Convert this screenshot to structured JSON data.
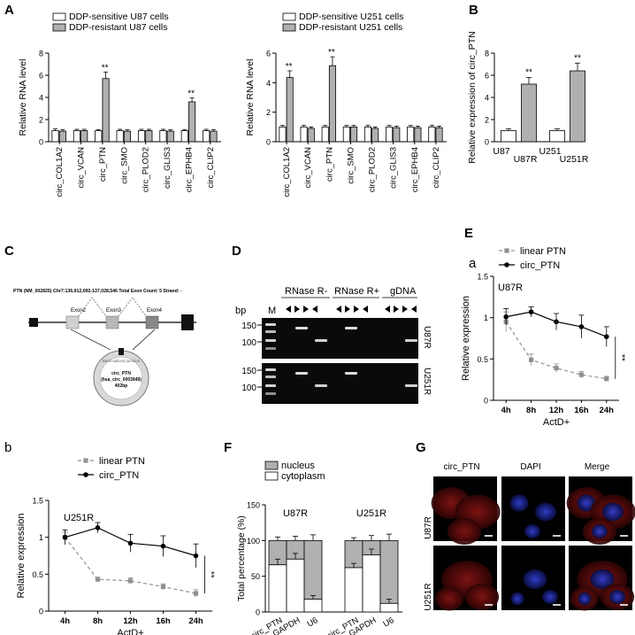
{
  "panels": {
    "A": "A",
    "B": "B",
    "C": "C",
    "D": "D",
    "E": "E",
    "E_sub": "a",
    "b": "b",
    "F": "F",
    "G": "G"
  },
  "chart_data": [
    {
      "id": "A_u87",
      "type": "bar",
      "ylabel": "Relative RNA level",
      "ylim": [
        0,
        8
      ],
      "yticks": [
        0,
        2,
        4,
        6,
        8
      ],
      "categories": [
        "circ_COL1A2",
        "circ_VCAN",
        "circ_PTN",
        "circ_SMO",
        "circ_PLOD2",
        "circ_GLIS3",
        "circ_EPHB4",
        "circ_CLIP2"
      ],
      "series": [
        {
          "name": "DDP-sensitive U87 cells",
          "color": "#ffffff",
          "values": [
            1.0,
            1.0,
            1.0,
            1.0,
            1.0,
            1.0,
            1.0,
            1.0
          ],
          "errors": [
            0.15,
            0.12,
            0.1,
            0.12,
            0.12,
            0.12,
            0.1,
            0.12
          ]
        },
        {
          "name": "DDP-resistant U87 cells",
          "color": "#b0b0b0",
          "values": [
            0.95,
            1.0,
            5.7,
            0.95,
            1.0,
            0.95,
            3.6,
            0.95
          ],
          "errors": [
            0.12,
            0.12,
            0.6,
            0.12,
            0.12,
            0.12,
            0.35,
            0.12
          ]
        }
      ],
      "significance": [
        {
          "category": "circ_PTN",
          "label": "**"
        },
        {
          "category": "circ_EPHB4",
          "label": "**"
        }
      ]
    },
    {
      "id": "A_u251",
      "type": "bar",
      "ylabel": "Relative RNA level",
      "ylim": [
        0,
        6
      ],
      "yticks": [
        0,
        2,
        4,
        6
      ],
      "categories": [
        "circ_COL1A2",
        "circ_VCAN",
        "circ_PTN",
        "circ_SMO",
        "circ_PLOD2",
        "circ_GLIS3",
        "circ_EPHB4",
        "circ_CLIP2"
      ],
      "series": [
        {
          "name": "DDP-sensitive U251 cells",
          "color": "#ffffff",
          "values": [
            1.0,
            1.0,
            1.0,
            1.0,
            1.0,
            1.0,
            1.0,
            1.0
          ],
          "errors": [
            0.1,
            0.1,
            0.1,
            0.1,
            0.1,
            0.1,
            0.1,
            0.1
          ]
        },
        {
          "name": "DDP-resistant U251 cells",
          "color": "#b0b0b0",
          "values": [
            4.35,
            0.9,
            5.15,
            1.0,
            0.9,
            0.95,
            0.95,
            0.95
          ],
          "errors": [
            0.45,
            0.1,
            0.6,
            0.1,
            0.1,
            0.1,
            0.1,
            0.1
          ]
        }
      ],
      "significance": [
        {
          "category": "circ_COL1A2",
          "label": "**"
        },
        {
          "category": "circ_PTN",
          "label": "**"
        }
      ]
    },
    {
      "id": "B",
      "type": "bar",
      "ylabel": "Relative expression of circ_PTN",
      "ylim": [
        0,
        8
      ],
      "yticks": [
        0,
        2,
        4,
        6,
        8
      ],
      "categories": [
        "U87",
        "U87R",
        "U251",
        "U251R"
      ],
      "values": [
        1.0,
        5.2,
        1.0,
        6.4
      ],
      "errors": [
        0.15,
        0.6,
        0.15,
        0.7
      ],
      "colors": [
        "#ffffff",
        "#b0b0b0",
        "#ffffff",
        "#b0b0b0"
      ],
      "significance": [
        {
          "category": "U87R",
          "label": "**"
        },
        {
          "category": "U251R",
          "label": "**"
        }
      ]
    },
    {
      "id": "Ea",
      "type": "line",
      "title": "U87R",
      "ylabel": "Relative expression",
      "xlabel": "ActD+",
      "ylim": [
        0,
        1.5
      ],
      "yticks": [
        0.0,
        0.5,
        1.0,
        1.5
      ],
      "categories": [
        "4h",
        "8h",
        "12h",
        "16h",
        "24h"
      ],
      "series": [
        {
          "name": "linear PTN",
          "style": "dashed",
          "color": "#909090",
          "marker": "square",
          "values": [
            0.95,
            0.49,
            0.39,
            0.31,
            0.26
          ],
          "errors": [
            0.12,
            0.07,
            0.05,
            0.04,
            0.03
          ]
        },
        {
          "name": "circ_PTN",
          "style": "solid",
          "color": "#000000",
          "marker": "circle",
          "values": [
            1.01,
            1.07,
            0.95,
            0.89,
            0.77
          ],
          "errors": [
            0.1,
            0.06,
            0.1,
            0.14,
            0.12
          ]
        }
      ],
      "significance": "**"
    },
    {
      "id": "b",
      "type": "line",
      "title": "U251R",
      "ylabel": "Relative expression",
      "xlabel": "ActD+",
      "ylim": [
        0,
        1.5
      ],
      "yticks": [
        0.0,
        0.5,
        1.0,
        1.5
      ],
      "categories": [
        "4h",
        "8h",
        "12h",
        "16h",
        "24h"
      ],
      "series": [
        {
          "name": "linear PTN",
          "style": "dashed",
          "color": "#909090",
          "marker": "square",
          "values": [
            1.0,
            0.43,
            0.41,
            0.33,
            0.24
          ],
          "errors": [
            0.06,
            0.03,
            0.04,
            0.04,
            0.05
          ]
        },
        {
          "name": "circ_PTN",
          "style": "solid",
          "color": "#000000",
          "marker": "circle",
          "values": [
            1.0,
            1.13,
            0.92,
            0.88,
            0.75
          ],
          "errors": [
            0.1,
            0.07,
            0.12,
            0.14,
            0.16
          ]
        }
      ],
      "significance": "**"
    },
    {
      "id": "F",
      "type": "bar",
      "stacked": true,
      "ylabel": "Total percentage (%)",
      "ylim": [
        0,
        150
      ],
      "yticks": [
        0,
        50,
        100,
        150
      ],
      "groups": [
        "U87R",
        "U251R"
      ],
      "categories": [
        "circ_PTN",
        "GAPDH",
        "U6"
      ],
      "series": [
        {
          "name": "nucleus",
          "color": "#b0b0b0"
        },
        {
          "name": "cytoplasm",
          "color": "#ffffff"
        }
      ],
      "cytoplasm": [
        [
          66,
          74,
          18
        ],
        [
          62,
          80,
          12
        ]
      ],
      "cyto_errors": [
        [
          8,
          8,
          5
        ],
        [
          6,
          8,
          6
        ]
      ],
      "total_errors": [
        [
          5,
          6,
          8
        ],
        [
          4,
          7,
          9
        ]
      ]
    }
  ],
  "panelC": {
    "header": "PTN (NM_002825) Chr7:136,912,092-137,028,546 Total Exon Count: 5 Strand: -",
    "exons": [
      "Exon2",
      "Exon3",
      "Exon4"
    ],
    "junction": "Back-spliced junction",
    "circle_lines": [
      "circ_PTN",
      "(hsa_circ_0003949)",
      "402bp"
    ]
  },
  "panelD": {
    "groups": [
      "RNase R-",
      "RNase R+",
      "gDNA"
    ],
    "bp_label": "bp",
    "ladder_label": "M",
    "ladder_ticks": [
      "150",
      "100"
    ],
    "rows": [
      "U87R",
      "U251R"
    ]
  },
  "panelG": {
    "columns": [
      "circ_PTN",
      "DAPI",
      "Merge"
    ],
    "rows": [
      "U87R",
      "U251R"
    ]
  }
}
